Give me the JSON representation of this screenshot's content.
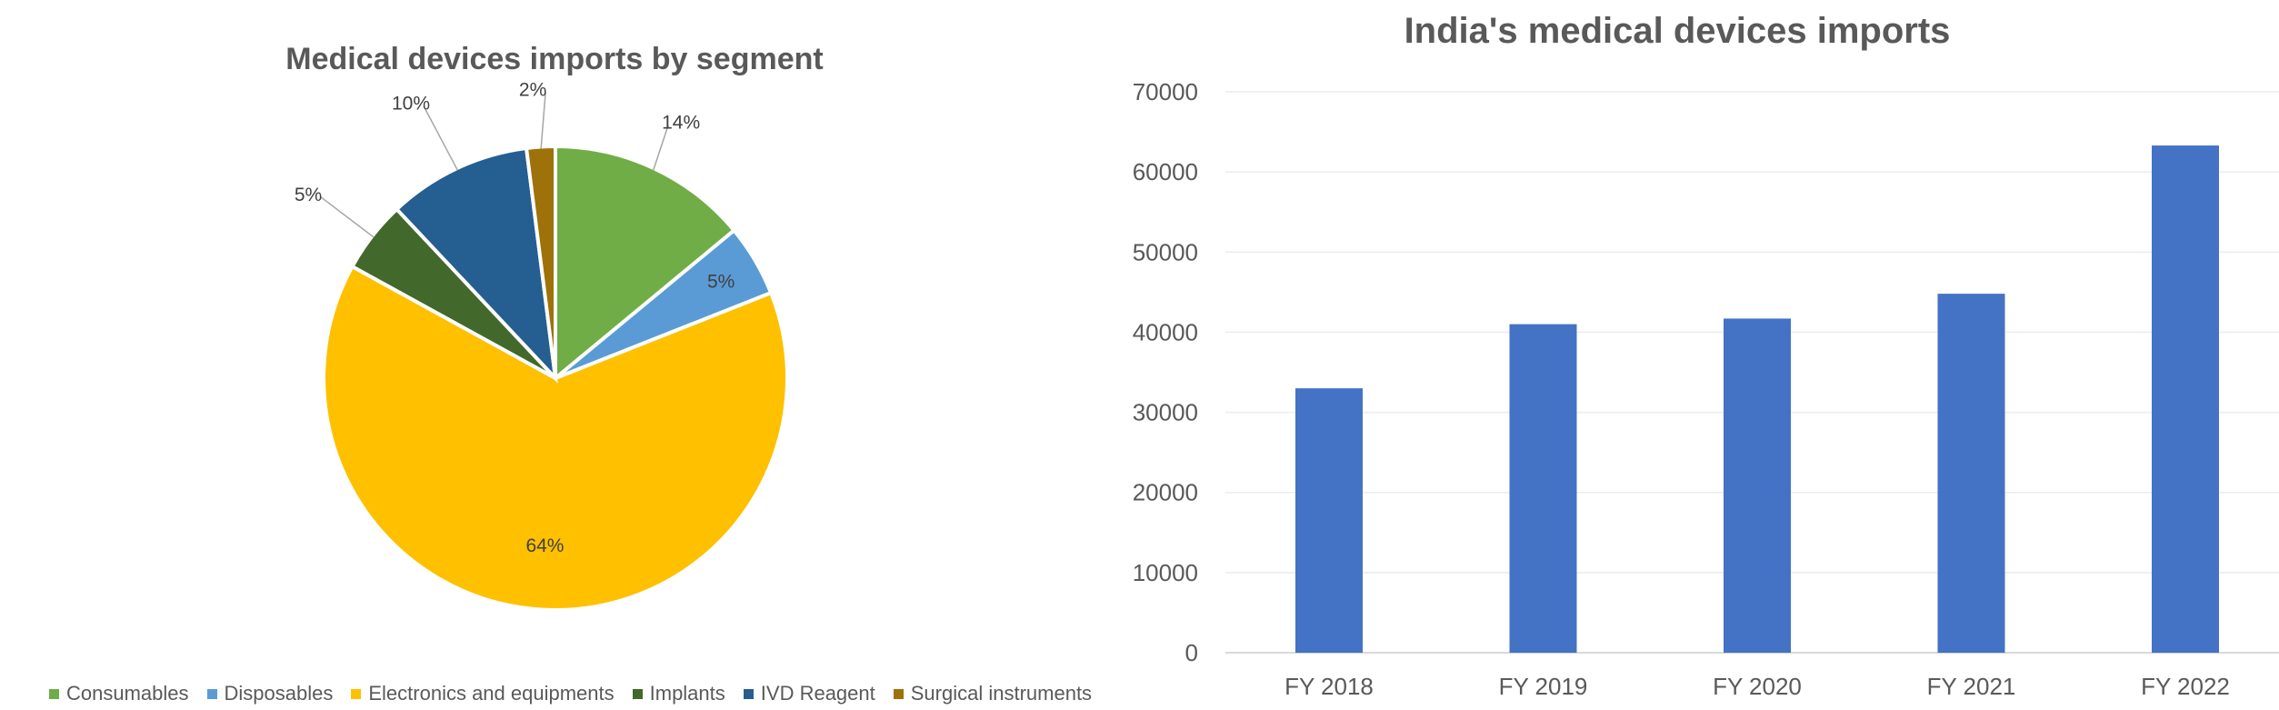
{
  "chart_data": [
    {
      "type": "pie",
      "title": "Medical devices imports by segment",
      "categories": [
        "Consumables",
        "Disposables",
        "Electronics and equipments",
        "Implants",
        "IVD Reagent",
        "Surgical instruments"
      ],
      "values": [
        14,
        5,
        64,
        5,
        10,
        2
      ],
      "labels": [
        "14%",
        "5%",
        "64%",
        "5%",
        "10%",
        "2%"
      ],
      "colors": [
        "#70AD47",
        "#5B9BD5",
        "#FFC000",
        "#43682B",
        "#255E91",
        "#9E7109"
      ],
      "legend": "bottom"
    },
    {
      "type": "bar",
      "title": "India's medical devices imports",
      "categories": [
        "FY 2018",
        "FY 2019",
        "FY 2020",
        "FY 2021",
        "FY 2022"
      ],
      "values": [
        33000,
        41000,
        41700,
        44800,
        63300
      ],
      "ylim": [
        0,
        70000
      ],
      "yticks": [
        "0",
        "10000",
        "20000",
        "30000",
        "40000",
        "50000",
        "60000",
        "70000"
      ],
      "grid": true,
      "color": "#4472C4"
    }
  ]
}
